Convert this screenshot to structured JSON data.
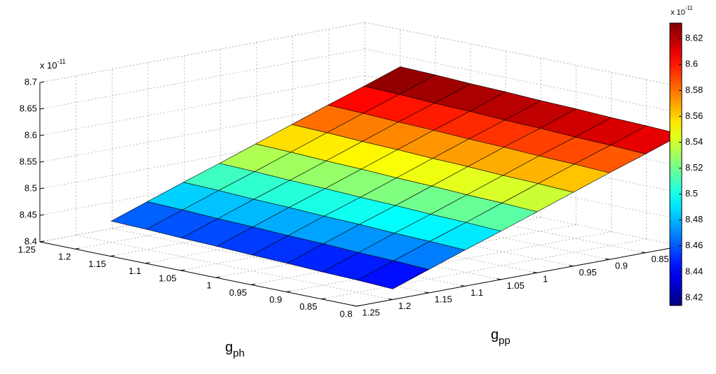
{
  "chart_data": {
    "type": "surface",
    "xlabel": {
      "text": "g",
      "subscript": "ph"
    },
    "ylabel": {
      "text": "g",
      "subscript": "pp"
    },
    "z_multiplier": {
      "base": "x 10",
      "exponent": "-11"
    },
    "colorbar_multiplier": {
      "base": "x 10",
      "exponent": "-11"
    },
    "x": [
      0.8,
      0.85,
      0.9,
      0.95,
      1,
      1.05,
      1.1,
      1.15,
      1.2
    ],
    "y": [
      0.8,
      0.85,
      0.9,
      0.95,
      1,
      1.05,
      1.1,
      1.15,
      1.2
    ],
    "z": [
      [
        8.61,
        8.586,
        8.563,
        8.539,
        8.515,
        8.491,
        8.468,
        8.444,
        8.42
      ],
      [
        8.613,
        8.589,
        8.566,
        8.542,
        8.518,
        8.494,
        8.471,
        8.447,
        8.423
      ],
      [
        8.615,
        8.591,
        8.568,
        8.544,
        8.52,
        8.496,
        8.473,
        8.449,
        8.425
      ],
      [
        8.618,
        8.594,
        8.571,
        8.547,
        8.523,
        8.499,
        8.476,
        8.452,
        8.428
      ],
      [
        8.62,
        8.596,
        8.573,
        8.549,
        8.525,
        8.501,
        8.478,
        8.454,
        8.43
      ],
      [
        8.623,
        8.599,
        8.576,
        8.552,
        8.528,
        8.504,
        8.481,
        8.457,
        8.433
      ],
      [
        8.625,
        8.601,
        8.578,
        8.554,
        8.53,
        8.506,
        8.483,
        8.459,
        8.435
      ],
      [
        8.628,
        8.604,
        8.581,
        8.557,
        8.533,
        8.509,
        8.486,
        8.462,
        8.438
      ],
      [
        8.63,
        8.606,
        8.583,
        8.559,
        8.535,
        8.511,
        8.488,
        8.464,
        8.44
      ]
    ],
    "xlim": [
      0.8,
      1.25
    ],
    "xticks": [
      0.8,
      0.85,
      0.9,
      0.95,
      1,
      1.05,
      1.1,
      1.15,
      1.2,
      1.25
    ],
    "ylim": [
      0.8,
      1.25
    ],
    "yticks": [
      0.85,
      0.9,
      0.95,
      1,
      1.05,
      1.1,
      1.15,
      1.2,
      1.25
    ],
    "zlim": [
      8.4,
      8.7
    ],
    "zticks": [
      8.4,
      8.45,
      8.5,
      8.55,
      8.6,
      8.65,
      8.7
    ],
    "colormap": "jet",
    "clim": [
      8.414,
      8.632
    ],
    "cticks": [
      8.42,
      8.44,
      8.46,
      8.48,
      8.5,
      8.52,
      8.54,
      8.56,
      8.58,
      8.6,
      8.62
    ],
    "grid": true
  }
}
